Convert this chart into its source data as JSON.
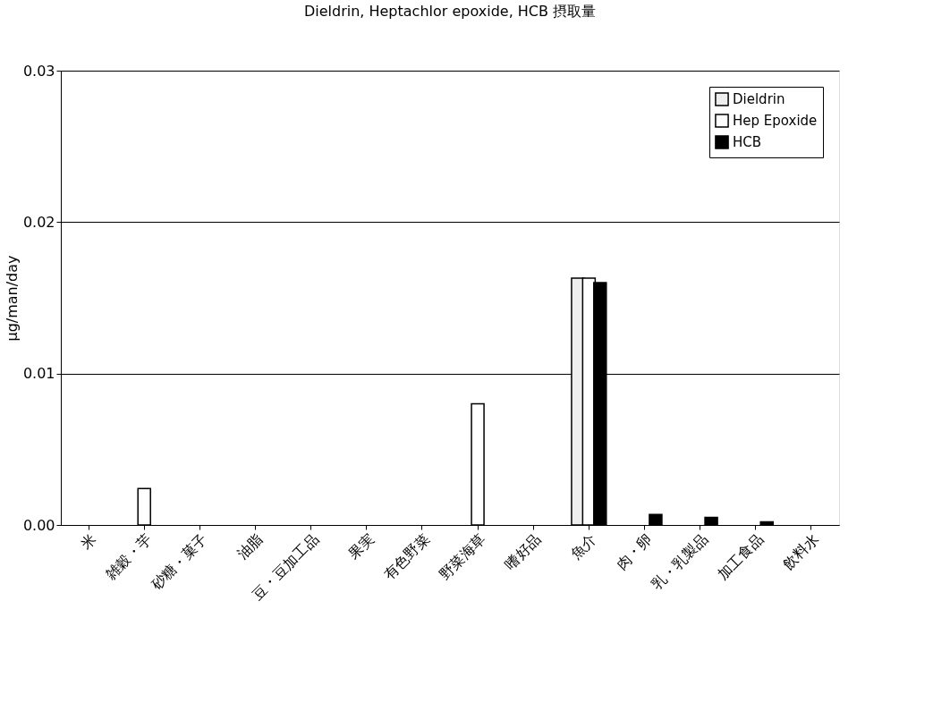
{
  "chart_data": {
    "type": "bar",
    "title": "Dieldrin, Heptachlor epoxide, HCB 摂取量",
    "ylabel": "μg/man/day",
    "categories": [
      "米",
      "雑穀・芋",
      "砂糖・菓子",
      "油脂",
      "豆・豆加工品",
      "果実",
      "有色野菜",
      "野菜海草",
      "嗜好品",
      "魚介",
      "肉・卵",
      "乳・乳製品",
      "加工食品",
      "飲料水"
    ],
    "series": [
      {
        "name": "Dieldrin",
        "color": "#eeeeee",
        "values": [
          null,
          null,
          null,
          null,
          null,
          null,
          null,
          null,
          null,
          0.0163,
          null,
          null,
          null,
          null
        ]
      },
      {
        "name": "Hep Epoxide",
        "color": "#ffffff",
        "values": [
          null,
          0.0024,
          null,
          null,
          null,
          null,
          null,
          0.008,
          null,
          0.0163,
          null,
          null,
          null,
          null
        ]
      },
      {
        "name": "HCB",
        "color": "#000000",
        "values": [
          null,
          null,
          null,
          null,
          null,
          null,
          null,
          null,
          null,
          0.016,
          0.0007,
          0.0005,
          0.0002,
          null
        ]
      }
    ],
    "ylim": [
      0,
      0.03
    ],
    "yticks": [
      {
        "value": 0,
        "label": "0.00"
      },
      {
        "value": 0.01,
        "label": "0.01"
      },
      {
        "value": 0.02,
        "label": "0.02"
      },
      {
        "value": 0.03,
        "label": "0.03"
      }
    ],
    "grid": "y",
    "legend": "top right"
  }
}
